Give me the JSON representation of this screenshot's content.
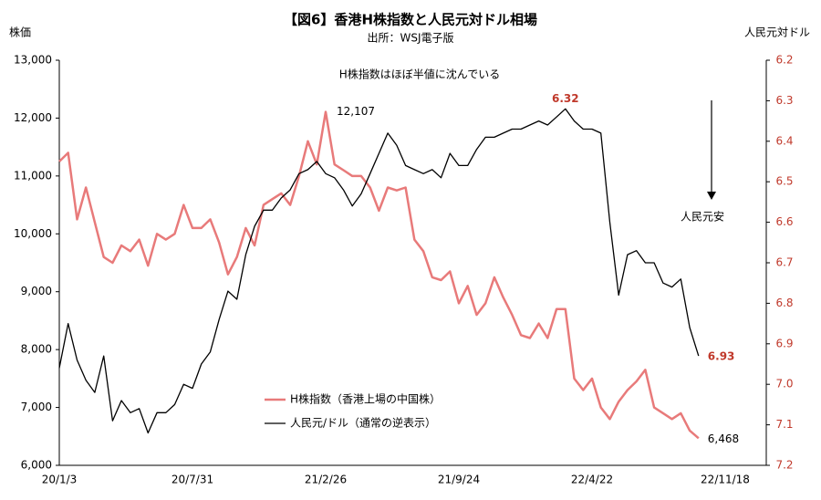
{
  "chart_data": {
    "type": "line",
    "title": "【図6】香港H株指数と人民元対ドル相場",
    "subtitle": "出所：WSJ電子版",
    "ylabel": "株価",
    "y2label": "人民元対ドル",
    "annotations": [
      "H株指数はほぼ半値に沈んでいる",
      "人民元安"
    ],
    "categories": [
      "20/1/3",
      null,
      null,
      null,
      null,
      null,
      null,
      null,
      null,
      null,
      null,
      null,
      null,
      null,
      null,
      "20/7/31",
      null,
      null,
      null,
      null,
      null,
      null,
      null,
      null,
      null,
      null,
      null,
      null,
      null,
      null,
      "21/2/26",
      null,
      null,
      null,
      null,
      null,
      null,
      null,
      null,
      null,
      null,
      null,
      null,
      null,
      null,
      "21/9/24",
      null,
      null,
      null,
      null,
      null,
      null,
      null,
      null,
      null,
      null,
      null,
      null,
      null,
      null,
      "22/4/22",
      null,
      null,
      null,
      null,
      null,
      null,
      null,
      null,
      null,
      null,
      null,
      null,
      null,
      null,
      "22/11/18"
    ],
    "ylim": [
      6000,
      13000
    ],
    "yticks": [
      {
        "value": 6000,
        "label": "6,000"
      },
      {
        "value": 7000,
        "label": "7,000"
      },
      {
        "value": 8000,
        "label": "8,000"
      },
      {
        "value": 9000,
        "label": "9,000"
      },
      {
        "value": 10000,
        "label": "10,000"
      },
      {
        "value": 11000,
        "label": "11,000"
      },
      {
        "value": 12000,
        "label": "12,000"
      },
      {
        "value": 13000,
        "label": "13,000"
      }
    ],
    "y2lim": [
      7.2,
      6.2
    ],
    "y2ticks": [
      7.2,
      7.1,
      {
        "value": 7,
        "label": "7.0"
      },
      6.9,
      6.8,
      6.7,
      6.6,
      6.5,
      6.4,
      6.3,
      6.2
    ],
    "legend": "bottom",
    "series": [
      {
        "name": "H株指数（香港上場の中国株）",
        "color": "#e87a7a",
        "axis": "y",
        "values": [
          11250,
          11400,
          10250,
          10800,
          10200,
          9600,
          9500,
          9800,
          9700,
          9900,
          9450,
          10000,
          9900,
          10000,
          10500,
          10100,
          10100,
          10250,
          9850,
          9300,
          9600,
          10100,
          9800,
          10500,
          10600,
          10700,
          10500,
          11000,
          11600,
          11200,
          12107,
          11200,
          11100,
          11000,
          11000,
          10800,
          10400,
          10800,
          10750,
          10800,
          9900,
          9700,
          9250,
          9200,
          9350,
          8800,
          9100,
          8600,
          8800,
          9250,
          8900,
          8600,
          8250,
          8200,
          8450,
          8200,
          8700,
          8700,
          7500,
          7300,
          7500,
          7000,
          6800,
          7100,
          7300,
          7450,
          7650,
          7000,
          6900,
          6800,
          6900,
          6600,
          6468,
          null,
          null,
          null
        ],
        "value_labels": [
          null,
          null,
          null,
          null,
          null,
          null,
          null,
          null,
          null,
          null,
          null,
          null,
          null,
          null,
          null,
          null,
          null,
          null,
          null,
          null,
          null,
          null,
          null,
          null,
          null,
          null,
          null,
          null,
          null,
          null,
          "12,107",
          null,
          null,
          null,
          null,
          null,
          null,
          null,
          null,
          null,
          null,
          null,
          null,
          null,
          null,
          null,
          null,
          null,
          null,
          null,
          null,
          null,
          null,
          null,
          null,
          null,
          null,
          null,
          null,
          null,
          null,
          null,
          null,
          null,
          null,
          null,
          null,
          null,
          null,
          null,
          null,
          null,
          "6,468",
          null,
          null,
          null
        ]
      },
      {
        "name": "人民元/ドル（通常の逆表示）",
        "color": "#000000",
        "axis": "y2",
        "label_color": "#c0392b",
        "values": [
          6.96,
          6.85,
          6.94,
          6.99,
          7.02,
          6.93,
          7.09,
          7.04,
          7.07,
          7.06,
          7.12,
          7.07,
          7.07,
          7.05,
          7.0,
          7.01,
          6.95,
          6.92,
          6.84,
          6.77,
          6.79,
          6.68,
          6.61,
          6.57,
          6.57,
          6.54,
          6.52,
          6.48,
          6.47,
          6.45,
          6.48,
          6.49,
          6.52,
          6.56,
          6.53,
          6.48,
          6.43,
          6.38,
          6.41,
          6.46,
          6.47,
          6.48,
          6.47,
          6.49,
          6.43,
          6.46,
          6.46,
          6.42,
          6.39,
          6.39,
          6.38,
          6.37,
          6.37,
          6.36,
          6.35,
          6.36,
          6.34,
          6.32,
          6.35,
          6.37,
          6.37,
          6.38,
          6.6,
          6.78,
          6.68,
          6.67,
          6.7,
          6.7,
          6.75,
          6.76,
          6.74,
          6.86,
          6.93,
          null,
          null,
          null
        ],
        "value_labels": [
          null,
          null,
          null,
          null,
          null,
          null,
          null,
          null,
          null,
          null,
          null,
          null,
          null,
          null,
          null,
          null,
          null,
          null,
          null,
          null,
          null,
          null,
          null,
          null,
          null,
          null,
          null,
          null,
          null,
          null,
          null,
          null,
          null,
          null,
          null,
          null,
          null,
          null,
          null,
          null,
          null,
          null,
          null,
          null,
          null,
          null,
          null,
          null,
          null,
          null,
          null,
          null,
          null,
          null,
          null,
          null,
          null,
          "6.32",
          null,
          null,
          null,
          null,
          null,
          null,
          null,
          null,
          null,
          null,
          null,
          null,
          null,
          null,
          "6.93",
          null,
          null,
          null
        ]
      }
    ],
    "y2tick_color": "#c0392b"
  }
}
